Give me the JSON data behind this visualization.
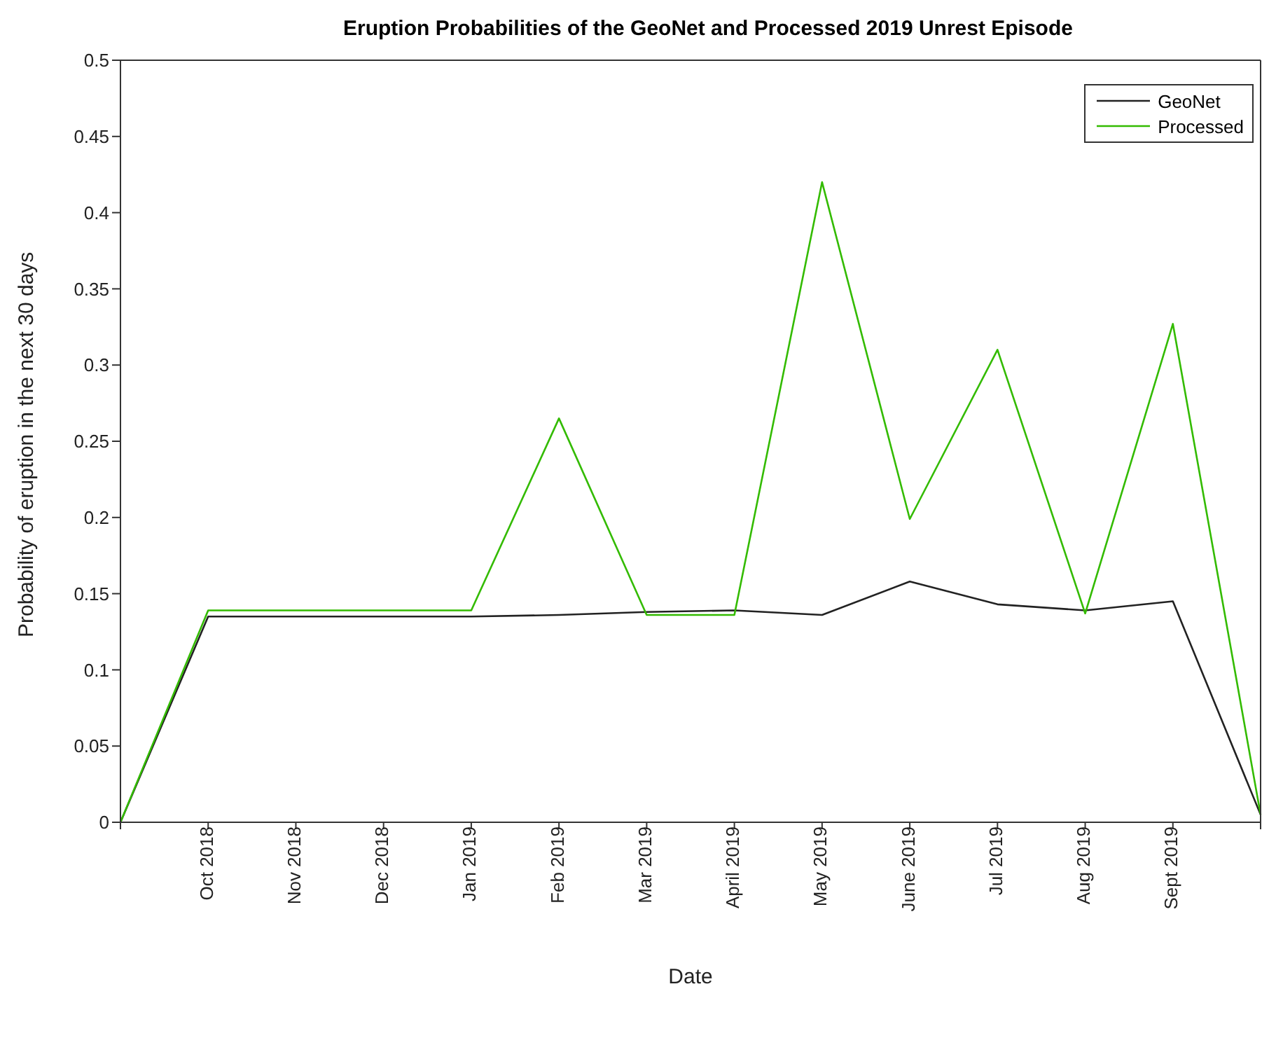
{
  "chart_data": {
    "type": "line",
    "title": "Eruption Probabilities of the GeoNet and Processed 2019 Unrest Episode",
    "xlabel": "Date",
    "ylabel": "Probability of eruption in the next 30 days",
    "categories": [
      null,
      "Oct 2018",
      "Nov 2018",
      "Dec 2018",
      "Jan 2019",
      "Feb 2019",
      "Mar 2019",
      "April 2019",
      "May 2019",
      "June 2019",
      "Jul 2019",
      "Aug 2019",
      "Sept 2019",
      null
    ],
    "series": [
      {
        "name": "GeoNet",
        "color": "#222222",
        "values": [
          0,
          0.135,
          0.135,
          0.135,
          0.135,
          0.136,
          0.138,
          0.139,
          0.136,
          0.158,
          0.143,
          0.139,
          0.145,
          0.005
        ]
      },
      {
        "name": "Processed",
        "color": "#33bb00",
        "values": [
          0,
          0.139,
          0.139,
          0.139,
          0.139,
          0.265,
          0.136,
          0.136,
          0.42,
          0.199,
          0.31,
          0.137,
          0.327,
          0.005
        ]
      }
    ],
    "ylim": [
      0,
      0.5
    ],
    "yticks": [
      0,
      0.05,
      0.1,
      0.15,
      0.2,
      0.25,
      0.3,
      0.35,
      0.4,
      0.45,
      0.5
    ],
    "grid": false,
    "legend": "top right",
    "marker": "none",
    "line_style": "solid"
  }
}
